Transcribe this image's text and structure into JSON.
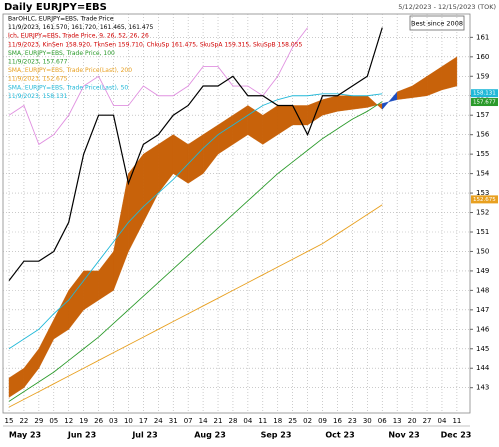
{
  "chart_data": {
    "type": "line",
    "title": "Daily EURJPY=EBS",
    "date_range": "5/12/2023 - 12/15/2023 (TOK)",
    "button": "Best since 2008",
    "categories": [
      "15",
      "22",
      "29",
      "05",
      "12",
      "19",
      "26",
      "03",
      "10",
      "17",
      "24",
      "31",
      "07",
      "14",
      "21",
      "28",
      "04",
      "11",
      "18",
      "25",
      "02",
      "09",
      "16",
      "23",
      "30",
      "06",
      "13",
      "20",
      "27",
      "04",
      "11"
    ],
    "months": [
      "May 23",
      "Jun 23",
      "Jul 23",
      "Aug 23",
      "Sep 23",
      "Oct 23",
      "Nov 23",
      "Dec 23"
    ],
    "ylim": [
      141.7,
      162.2
    ],
    "yticks": [
      143,
      144,
      145,
      146,
      147,
      148,
      149,
      150,
      151,
      152,
      153,
      154,
      155,
      156,
      157,
      158,
      159,
      160,
      161
    ],
    "grid": true,
    "legend": [
      {
        "text": "BarOHLC, EURJPY=EBS, Trade Price",
        "color": "#000000"
      },
      {
        "text": "11/9/2023, 161.570, 161.720, 161.465, 161.475",
        "color": "#000000"
      },
      {
        "text": "Ich, EURJPY=EBS, Trade Price, 9, 26, 52, 26, 26",
        "color": "#d00000"
      },
      {
        "text": "11/9/2023, KinSen 158.920, TknSen 159.710, ChkuSp 161.475, SkuSpA 159.315, SkuSpB 158.055",
        "color": "#d00000"
      },
      {
        "text": "SMA, EURJPY=EBS, Trade Price, 100",
        "color": "#2a9a2a"
      },
      {
        "text": "11/9/2023, 157.677",
        "color": "#2a9a2a"
      },
      {
        "text": "SMA, EURJPY=EBS, Trade Price(Last), 200",
        "color": "#e8a020"
      },
      {
        "text": "11/9/2023, 152.675",
        "color": "#e8a020"
      },
      {
        "text": "SMA, EURJPY=EBS, Trade Price(Last), 50",
        "color": "#20b8d8"
      },
      {
        "text": "11/9/2023, 158.131",
        "color": "#20b8d8"
      }
    ],
    "cloud": {
      "up_color": "#c8620a",
      "down_color": "#1f4fc0",
      "span_a": [
        143.5,
        144,
        145,
        146.5,
        148,
        149,
        149,
        150,
        154,
        155,
        155.5,
        156,
        155.5,
        156,
        156.5,
        157,
        157.5,
        157,
        157.5,
        157.5,
        157.5,
        157.8,
        158,
        158,
        158,
        157.3,
        158.2,
        158.5,
        159,
        159.5,
        160
      ],
      "span_b": [
        142.5,
        143,
        144,
        145.5,
        146,
        147,
        147.5,
        148,
        150,
        151.5,
        153,
        154,
        153.5,
        154,
        155,
        155.5,
        156,
        155.5,
        156,
        156.5,
        156.5,
        157,
        157.2,
        157.3,
        157.4,
        157.6,
        157.8,
        157.9,
        158,
        158.3,
        158.5
      ]
    },
    "series": [
      {
        "color": "#e090e0",
        "values": [
          157,
          157.5,
          155.5,
          156,
          157,
          158.5,
          159,
          157.5,
          157.5,
          158.5,
          158,
          158,
          158.5,
          159.5,
          159.5,
          158.5,
          158.5,
          158,
          159,
          160.5,
          161.5,
          null,
          null,
          null,
          null,
          null,
          null,
          null,
          null,
          null,
          null
        ]
      },
      {
        "color": "#e8a020",
        "values": [
          142,
          142.4,
          142.8,
          143.2,
          143.6,
          144,
          144.4,
          144.8,
          145.2,
          145.6,
          146,
          146.4,
          146.8,
          147.2,
          147.6,
          148,
          148.4,
          148.8,
          149.2,
          149.6,
          150,
          150.4,
          150.9,
          151.4,
          151.9,
          152.4,
          null,
          null,
          null,
          null,
          null
        ]
      },
      {
        "color": "#2a9a2a",
        "values": [
          142.3,
          142.8,
          143.3,
          143.8,
          144.4,
          145,
          145.6,
          146.3,
          147,
          147.7,
          148.4,
          149.1,
          149.8,
          150.5,
          151.2,
          151.9,
          152.6,
          153.3,
          154,
          154.6,
          155.2,
          155.8,
          156.3,
          156.8,
          157.2,
          157.7,
          null,
          null,
          null,
          null,
          null
        ]
      },
      {
        "color": "#20b8d8",
        "values": [
          145,
          145.5,
          146,
          146.8,
          147.5,
          148.5,
          149.5,
          150.5,
          151.5,
          152.3,
          153,
          153.7,
          154.5,
          155.3,
          156,
          156.5,
          157,
          157.5,
          157.8,
          158,
          158,
          158.1,
          158.1,
          158,
          158,
          158.1,
          null,
          null,
          null,
          null,
          null
        ]
      },
      {
        "color": "#000000",
        "values": [
          148.5,
          149.5,
          149.5,
          150,
          151.5,
          155,
          157,
          157,
          153.5,
          155.5,
          156,
          157,
          157.5,
          158.5,
          158.5,
          159,
          158,
          158,
          157.5,
          157.5,
          156,
          158,
          158,
          158.5,
          159,
          161.5,
          null,
          null,
          null,
          null,
          null
        ]
      }
    ],
    "price_tags": [
      {
        "value": 158.131,
        "color": "#20b8d8"
      },
      {
        "value": 157.677,
        "color": "#2a9a2a"
      },
      {
        "value": 152.675,
        "color": "#e8a020"
      }
    ]
  }
}
